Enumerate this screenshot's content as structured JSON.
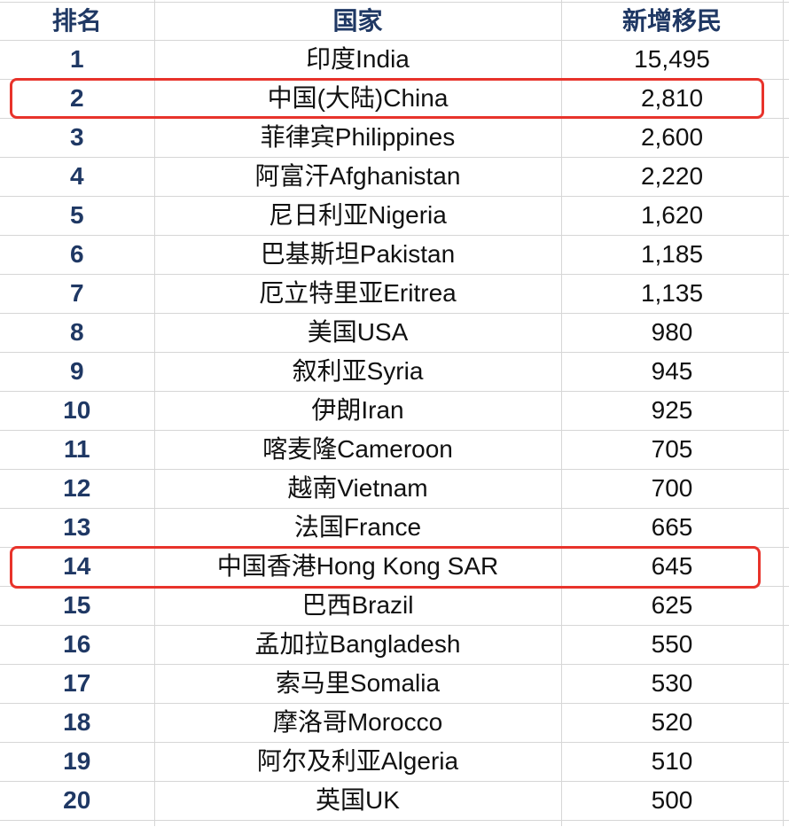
{
  "header": {
    "rank": "排名",
    "country": "国家",
    "value": "新增移民"
  },
  "rows": [
    {
      "rank": "1",
      "country": "印度India",
      "value": "15,495",
      "highlighted": false
    },
    {
      "rank": "2",
      "country": "中国(大陆)China",
      "value": "2,810",
      "highlighted": true
    },
    {
      "rank": "3",
      "country": "菲律宾Philippines",
      "value": "2,600",
      "highlighted": false
    },
    {
      "rank": "4",
      "country": "阿富汗Afghanistan",
      "value": "2,220",
      "highlighted": false
    },
    {
      "rank": "5",
      "country": "尼日利亚Nigeria",
      "value": "1,620",
      "highlighted": false
    },
    {
      "rank": "6",
      "country": "巴基斯坦Pakistan",
      "value": "1,185",
      "highlighted": false
    },
    {
      "rank": "7",
      "country": "厄立特里亚Eritrea",
      "value": "1,135",
      "highlighted": false
    },
    {
      "rank": "8",
      "country": "美国USA",
      "value": "980",
      "highlighted": false
    },
    {
      "rank": "9",
      "country": "叙利亚Syria",
      "value": "945",
      "highlighted": false
    },
    {
      "rank": "10",
      "country": "伊朗Iran",
      "value": "925",
      "highlighted": false
    },
    {
      "rank": "11",
      "country": "喀麦隆Cameroon",
      "value": "705",
      "highlighted": false
    },
    {
      "rank": "12",
      "country": "越南Vietnam",
      "value": "700",
      "highlighted": false
    },
    {
      "rank": "13",
      "country": "法国France",
      "value": "665",
      "highlighted": false
    },
    {
      "rank": "14",
      "country": "中国香港Hong Kong SAR",
      "value": "645",
      "highlighted": true
    },
    {
      "rank": "15",
      "country": "巴西Brazil",
      "value": "625",
      "highlighted": false
    },
    {
      "rank": "16",
      "country": "孟加拉Bangladesh",
      "value": "550",
      "highlighted": false
    },
    {
      "rank": "17",
      "country": "索马里Somalia",
      "value": "530",
      "highlighted": false
    },
    {
      "rank": "18",
      "country": "摩洛哥Morocco",
      "value": "520",
      "highlighted": false
    },
    {
      "rank": "19",
      "country": "阿尔及利亚Algeria",
      "value": "510",
      "highlighted": false
    },
    {
      "rank": "20",
      "country": "英国UK",
      "value": "500",
      "highlighted": false
    }
  ],
  "colors": {
    "header_text": "#1f3864",
    "rank_text": "#1f3864",
    "body_text": "#111111",
    "gridline": "#d6d6d6",
    "highlight_border": "#e8332b"
  },
  "chart_data": {
    "type": "table",
    "title": "",
    "columns": [
      "排名",
      "国家",
      "新增移民"
    ],
    "rows": [
      [
        1,
        "印度India",
        15495
      ],
      [
        2,
        "中国(大陆)China",
        2810
      ],
      [
        3,
        "菲律宾Philippines",
        2600
      ],
      [
        4,
        "阿富汗Afghanistan",
        2220
      ],
      [
        5,
        "尼日利亚Nigeria",
        1620
      ],
      [
        6,
        "巴基斯坦Pakistan",
        1185
      ],
      [
        7,
        "厄立特里亚Eritrea",
        1135
      ],
      [
        8,
        "美国USA",
        980
      ],
      [
        9,
        "叙利亚Syria",
        945
      ],
      [
        10,
        "伊朗Iran",
        925
      ],
      [
        11,
        "喀麦隆Cameroon",
        705
      ],
      [
        12,
        "越南Vietnam",
        700
      ],
      [
        13,
        "法国France",
        665
      ],
      [
        14,
        "中国香港Hong Kong SAR",
        645
      ],
      [
        15,
        "巴西Brazil",
        625
      ],
      [
        16,
        "孟加拉Bangladesh",
        550
      ],
      [
        17,
        "索马里Somalia",
        530
      ],
      [
        18,
        "摩洛哥Morocco",
        520
      ],
      [
        19,
        "阿尔及利亚Algeria",
        510
      ],
      [
        20,
        "英国UK",
        500
      ]
    ],
    "highlighted_ranks": [
      2,
      14
    ],
    "annotation_style": "red rounded rectangle around rows for rank 2 and rank 14"
  }
}
